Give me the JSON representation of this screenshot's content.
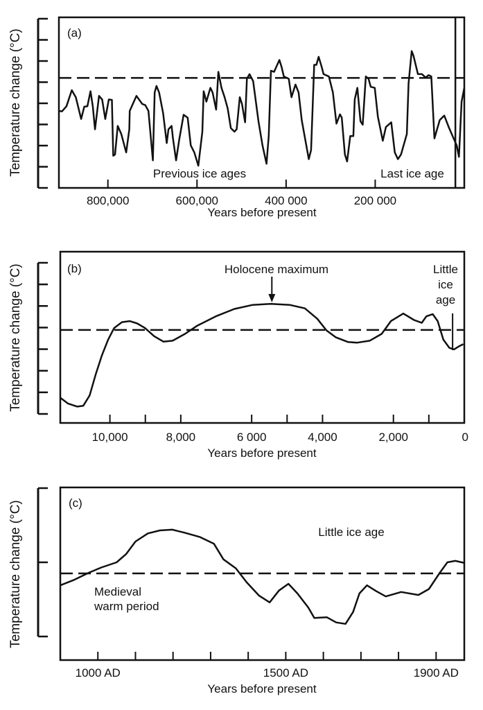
{
  "chart_data": [
    {
      "type": "line",
      "panel_label": "(a)",
      "ylabel": "Temperature change (°C)",
      "xlabel": "Years before present",
      "xlim": [
        910000,
        0
      ],
      "ylim": [
        0,
        8
      ],
      "y_tick_count": 9,
      "x_ticks": [
        800000,
        600000,
        400000,
        200000
      ],
      "x_tick_labels": [
        "800,000",
        "600,000",
        "400 000",
        "200 000"
      ],
      "reference_level": 5.2,
      "marker_x": 20000,
      "annotations": [
        "Previous ice ages",
        "Last ice age"
      ],
      "x": [
        910000,
        903000,
        893000,
        881000,
        872000,
        860000,
        853000,
        846000,
        839000,
        834000,
        829000,
        820000,
        813000,
        806000,
        798000,
        791000,
        788000,
        784000,
        778000,
        770000,
        759000,
        752000,
        751000,
        736000,
        723000,
        716000,
        709000,
        699000,
        695000,
        691000,
        685000,
        676000,
        668000,
        664000,
        657000,
        654000,
        647000,
        640000,
        630000,
        621000,
        614000,
        606000,
        597000,
        588000,
        585000,
        579000,
        570000,
        565000,
        557000,
        552000,
        545000,
        538000,
        531000,
        524000,
        516000,
        511000,
        504000,
        499000,
        492000,
        488000,
        482000,
        474000,
        462000,
        453000,
        444000,
        439000,
        434000,
        427000,
        415000,
        410000,
        405000,
        394000,
        388000,
        379000,
        372000,
        365000,
        349000,
        344000,
        337000,
        332000,
        327000,
        320000,
        316000,
        304000,
        295000,
        287000,
        279000,
        275000,
        268000,
        263000,
        256000,
        249000,
        246000,
        240000,
        233000,
        228000,
        221000,
        215000,
        210000,
        201000,
        194000,
        183000,
        176000,
        164000,
        156000,
        149000,
        142000,
        129000,
        125000,
        118000,
        114000,
        104000,
        95000,
        87000,
        80000,
        74000,
        67000,
        55000,
        45000,
        35000,
        24000,
        17000,
        12000,
        6000,
        0
      ],
      "y": [
        3.64,
        3.62,
        3.86,
        4.62,
        4.29,
        3.26,
        3.84,
        3.86,
        4.57,
        3.86,
        2.77,
        4.35,
        4.18,
        3.26,
        4.18,
        4.16,
        1.52,
        1.58,
        2.93,
        2.55,
        1.68,
        2.77,
        3.64,
        4.35,
        3.97,
        3.91,
        3.64,
        1.3,
        4.51,
        4.82,
        4.51,
        3.53,
        2.12,
        2.77,
        2.93,
        2.34,
        1.3,
        2.28,
        3.46,
        3.32,
        2.01,
        1.68,
        1.05,
        2.66,
        4.57,
        4.08,
        4.73,
        4.51,
        3.7,
        5.49,
        4.73,
        4.29,
        3.75,
        2.83,
        2.66,
        2.77,
        4.29,
        3.97,
        3.1,
        5.16,
        5.38,
        5.05,
        3.15,
        2.01,
        1.14,
        2.45,
        5.54,
        5.49,
        6.05,
        5.71,
        5.27,
        5.16,
        4.29,
        4.89,
        4.51,
        3.21,
        1.36,
        1.79,
        5.82,
        5.82,
        6.2,
        5.71,
        5.38,
        5.27,
        4.51,
        3.04,
        3.48,
        3.32,
        1.58,
        1.25,
        2.45,
        2.45,
        4.18,
        4.73,
        3.15,
        2.99,
        5.27,
        5.16,
        4.78,
        4.73,
        3.37,
        2.23,
        2.88,
        3.1,
        1.68,
        1.36,
        1.58,
        2.55,
        4.95,
        6.47,
        6.25,
        5.38,
        5.38,
        5.22,
        5.33,
        5.27,
        2.34,
        3.21,
        3.42,
        2.88,
        2.34,
        2.01,
        1.47,
        4.08,
        4.73
      ]
    },
    {
      "type": "line",
      "panel_label": "(b)",
      "ylabel": "Temperature change (°C)",
      "xlabel": "Years before present",
      "xlim": [
        11400,
        0
      ],
      "ylim": [
        0,
        7
      ],
      "y_tick_count": 8,
      "x_ticks": [
        10000,
        8000,
        6000,
        4000,
        2000,
        0
      ],
      "x_tick_labels": [
        "10,000",
        "8,000",
        "6 000",
        "4,000",
        "2,000",
        "0"
      ],
      "x_minor_ticks": [
        9000,
        5000,
        1000
      ],
      "reference_level": 3.89,
      "annotations": [
        "Holocene maximum",
        "Little",
        "ice",
        "age"
      ],
      "holocene_max_x": 5430,
      "marker_x": 330,
      "x": [
        11400,
        11180,
        10920,
        10750,
        10570,
        10400,
        10230,
        10050,
        9880,
        9660,
        9440,
        9230,
        9010,
        8750,
        8490,
        8230,
        7880,
        7530,
        7010,
        6490,
        5970,
        5450,
        4930,
        4500,
        4150,
        3890,
        3630,
        3280,
        3020,
        2670,
        2330,
        2070,
        1720,
        1420,
        1200,
        1070,
        890,
        750,
        590,
        420,
        290,
        160,
        30
      ],
      "y": [
        0.75,
        0.48,
        0.34,
        0.38,
        0.86,
        1.83,
        2.69,
        3.44,
        3.98,
        4.25,
        4.3,
        4.19,
        3.98,
        3.6,
        3.35,
        3.39,
        3.71,
        4.09,
        4.52,
        4.86,
        5.05,
        5.1,
        5.05,
        4.89,
        4.41,
        3.87,
        3.55,
        3.33,
        3.3,
        3.39,
        3.71,
        4.3,
        4.65,
        4.35,
        4.22,
        4.52,
        4.62,
        4.3,
        3.44,
        3.06,
        2.99,
        3.12,
        3.23
      ]
    },
    {
      "type": "line",
      "panel_label": "(c)",
      "ylabel": "Temperature change (°C)",
      "xlabel": "Years before present",
      "xlim": [
        900,
        1975
      ],
      "ylim": [
        0,
        2
      ],
      "y_tick_count": 3,
      "x_ticks": [
        1000,
        1500,
        1900
      ],
      "x_tick_labels": [
        "1000 AD",
        "1500 AD",
        "1900 AD"
      ],
      "x_minor_ticks": [
        1100,
        1200,
        1300,
        1400,
        1600,
        1700,
        1800
      ],
      "reference_level": 0.85,
      "annotations": [
        "Little ice age",
        "Medieval",
        "warm period"
      ],
      "x": [
        900,
        935,
        976,
        1009,
        1050,
        1075,
        1100,
        1133,
        1165,
        1198,
        1230,
        1272,
        1309,
        1334,
        1367,
        1396,
        1429,
        1457,
        1482,
        1507,
        1531,
        1560,
        1576,
        1609,
        1634,
        1659,
        1679,
        1696,
        1716,
        1741,
        1766,
        1807,
        1853,
        1881,
        1910,
        1930,
        1951,
        1977
      ],
      "y": [
        0.69,
        0.76,
        0.86,
        0.93,
        1.0,
        1.11,
        1.28,
        1.39,
        1.43,
        1.44,
        1.4,
        1.34,
        1.25,
        1.04,
        0.92,
        0.73,
        0.55,
        0.46,
        0.62,
        0.71,
        0.58,
        0.39,
        0.25,
        0.26,
        0.19,
        0.17,
        0.33,
        0.58,
        0.69,
        0.61,
        0.54,
        0.6,
        0.56,
        0.64,
        0.86,
        1.0,
        1.02,
        0.99
      ]
    }
  ]
}
